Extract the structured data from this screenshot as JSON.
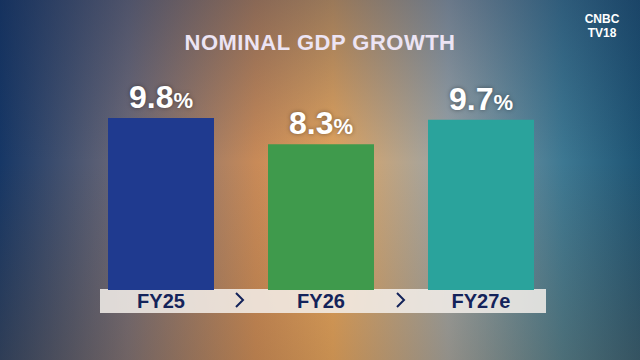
{
  "chart_data": {
    "type": "bar",
    "title": "NOMINAL GDP GROWTH",
    "categories": [
      "FY25",
      "FY26",
      "FY27e"
    ],
    "values": [
      9.8,
      8.3,
      9.7
    ],
    "value_labels": [
      "9.8%",
      "8.3%",
      "9.7%"
    ],
    "colors": [
      "#1f3a8f",
      "#3f9a4c",
      "#2aa39c"
    ],
    "data_labels": true,
    "tick_labels": "x",
    "grid": false,
    "annotations": [
      "CNBC",
      "TV18"
    ]
  }
}
